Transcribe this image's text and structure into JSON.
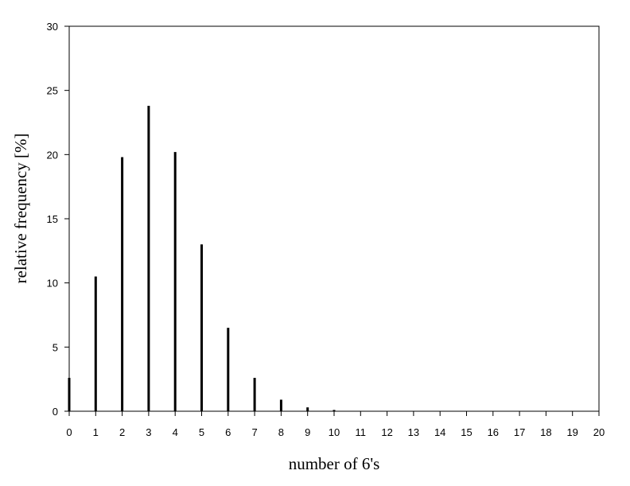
{
  "chart_data": {
    "type": "bar",
    "x_label": "number of 6's",
    "y_label": "relative frequency [%]",
    "x": [
      0,
      1,
      2,
      3,
      4,
      5,
      6,
      7,
      8,
      9,
      10,
      11,
      12,
      13,
      14,
      15,
      16,
      17,
      18,
      19,
      20
    ],
    "values": [
      2.6,
      10.5,
      19.8,
      23.8,
      20.2,
      13.0,
      6.5,
      2.6,
      0.9,
      0.3,
      0.1,
      0,
      0,
      0,
      0,
      0,
      0,
      0,
      0,
      0,
      0
    ],
    "color": "#000000",
    "xlim": [
      0,
      20
    ],
    "xticks": [
      0,
      1,
      2,
      3,
      4,
      5,
      6,
      7,
      8,
      9,
      10,
      11,
      12,
      13,
      14,
      15,
      16,
      17,
      18,
      19,
      20
    ],
    "ylim": [
      0,
      30
    ],
    "yticks": [
      0,
      5,
      10,
      15,
      20,
      25,
      30
    ],
    "grid": false
  }
}
